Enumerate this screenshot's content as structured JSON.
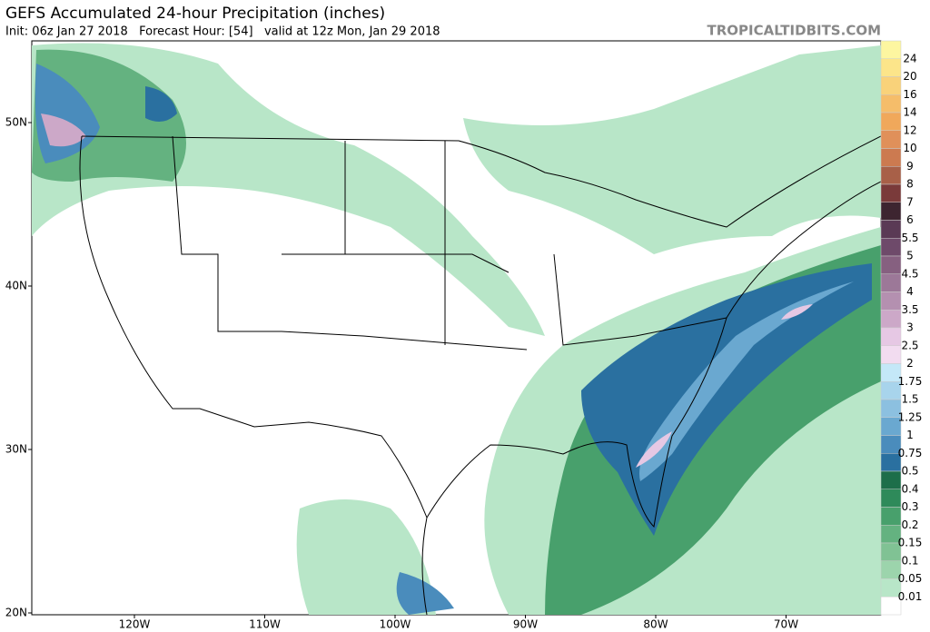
{
  "header": {
    "title": "GEFS Accumulated 24-hour Precipitation (inches)",
    "subtitle": "Init: 06z Jan 27 2018   Forecast Hour: [54]   valid at 12z Mon, Jan 29 2018",
    "watermark": "TROPICALTIDBITS.COM"
  },
  "map": {
    "lat_labels": [
      "50N",
      "40N",
      "30N",
      "20N"
    ],
    "lon_labels": [
      "120W",
      "110W",
      "100W",
      "90W",
      "80W",
      "70W"
    ]
  },
  "colorbar": {
    "labels": [
      "24",
      "20",
      "16",
      "14",
      "12",
      "10",
      "9",
      "8",
      "7",
      "6",
      "5.5",
      "5",
      "4.5",
      "4",
      "3.5",
      "3",
      "2.5",
      "2",
      "1.75",
      "1.5",
      "1.25",
      "1",
      "0.75",
      "0.5",
      "0.4",
      "0.3",
      "0.2",
      "0.15",
      "0.1",
      "0.05",
      "0.01"
    ],
    "colors": [
      "#fdf6a0",
      "#fce58a",
      "#f9d27a",
      "#f5bd6a",
      "#f0a85b",
      "#e0905a",
      "#cc7a50",
      "#a86048",
      "#7a3a3a",
      "#3d2530",
      "#5a3a55",
      "#6e4a6a",
      "#866080",
      "#9c7898",
      "#b490b0",
      "#cca8c8",
      "#e6c8e4",
      "#f2dcf0",
      "#c4e8f8",
      "#a8d4ec",
      "#8cc0e0",
      "#6aa8d0",
      "#4a8cbc",
      "#2a70a0",
      "#1d6e4a",
      "#2e8a5a",
      "#48a06c",
      "#64b280",
      "#80c294",
      "#9cd4ac",
      "#b8e6c8",
      "#ffffff"
    ]
  }
}
